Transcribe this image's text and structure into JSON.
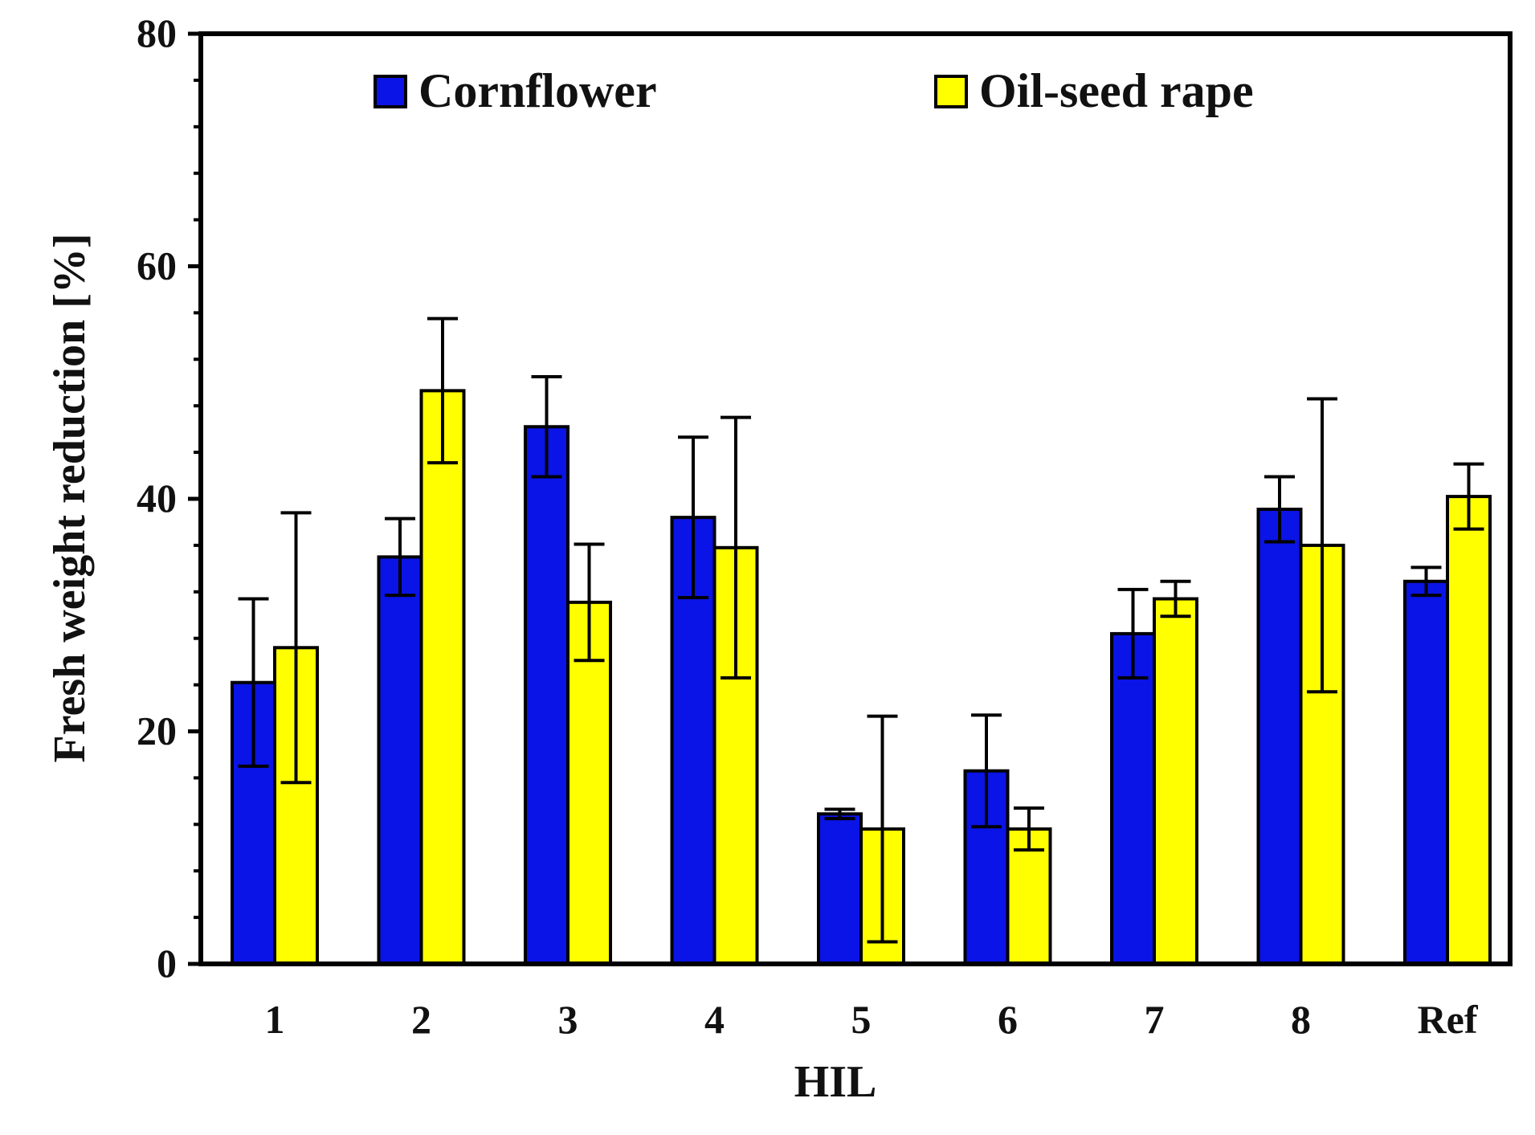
{
  "chart_data": {
    "type": "bar",
    "categories": [
      "1",
      "2",
      "3",
      "4",
      "5",
      "6",
      "7",
      "8",
      "Ref"
    ],
    "series": [
      {
        "name": "Cornflower",
        "color": "#0a14e6",
        "values": [
          24.2,
          35.0,
          46.2,
          38.4,
          12.9,
          16.6,
          28.4,
          39.1,
          32.9
        ],
        "errors": [
          7.2,
          3.3,
          4.3,
          6.9,
          0.4,
          4.8,
          3.8,
          2.8,
          1.2
        ]
      },
      {
        "name": "Oil-seed rape",
        "color": "#ffff00",
        "values": [
          27.2,
          49.3,
          31.1,
          35.8,
          11.6,
          11.6,
          31.4,
          36.0,
          40.2
        ],
        "errors": [
          11.6,
          6.2,
          5.0,
          11.2,
          9.7,
          1.8,
          1.5,
          12.6,
          2.8
        ]
      }
    ],
    "xlabel": "HIL",
    "ylabel": "Fresh weight reduction [%]",
    "ylim": [
      0,
      80
    ],
    "yticks": [
      0,
      20,
      40,
      60,
      80
    ],
    "legend_position": "top",
    "grid": false
  }
}
